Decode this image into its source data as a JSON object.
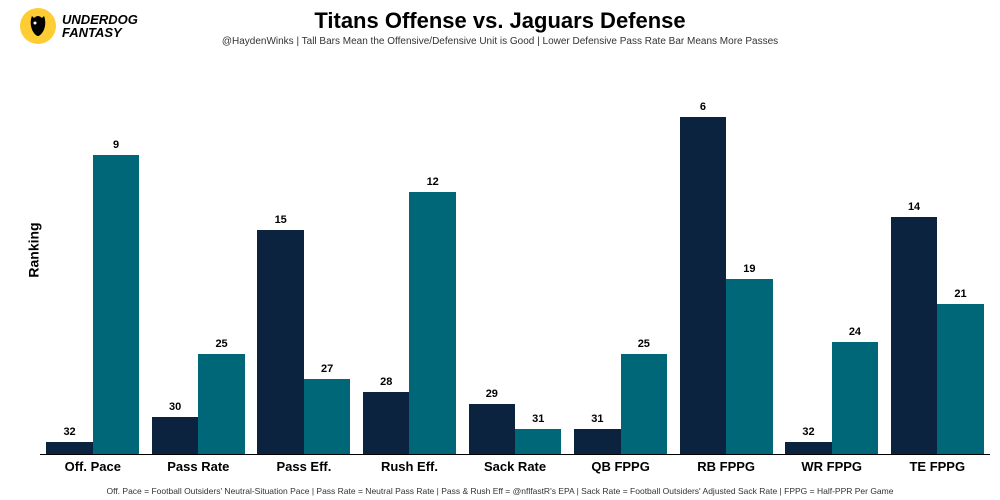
{
  "logo_text_1": "UNDERDOG",
  "logo_text_2": "FANTASY",
  "logo_bg": "#ffcc33",
  "title": "Titans Offense vs. Jaguars Defense",
  "subtitle": "@HaydenWinks | Tall Bars Mean the Offensive/Defensive Unit is Good | Lower Defensive Pass Rate Bar Means More Passes",
  "y_label": "Ranking",
  "footer": "Off. Pace = Football Outsiders' Neutral-Situation Pace | Pass Rate = Neutral Pass Rate | Pass & Rush Eff = @nflfastR's EPA | Sack Rate = Football Outsiders' Adjusted Sack Rate | FPPG = Half-PPR Per Game",
  "chart": {
    "type": "bar",
    "max_rank": 32,
    "color_a": "#0c2340",
    "color_b": "#006778",
    "label_fontsize": 11,
    "cat_fontsize": 13,
    "categories": [
      {
        "label": "Off. Pace",
        "a": 32,
        "b": 9
      },
      {
        "label": "Pass Rate",
        "a": 30,
        "b": 25
      },
      {
        "label": "Pass Eff.",
        "a": 15,
        "b": 27
      },
      {
        "label": "Rush Eff.",
        "a": 28,
        "b": 12
      },
      {
        "label": "Sack Rate",
        "a": 29,
        "b": 31
      },
      {
        "label": "QB FPPG",
        "a": 31,
        "b": 25
      },
      {
        "label": "RB FPPG",
        "a": 6,
        "b": 19
      },
      {
        "label": "WR FPPG",
        "a": 32,
        "b": 24
      },
      {
        "label": "TE FPPG",
        "a": 14,
        "b": 21
      }
    ]
  }
}
